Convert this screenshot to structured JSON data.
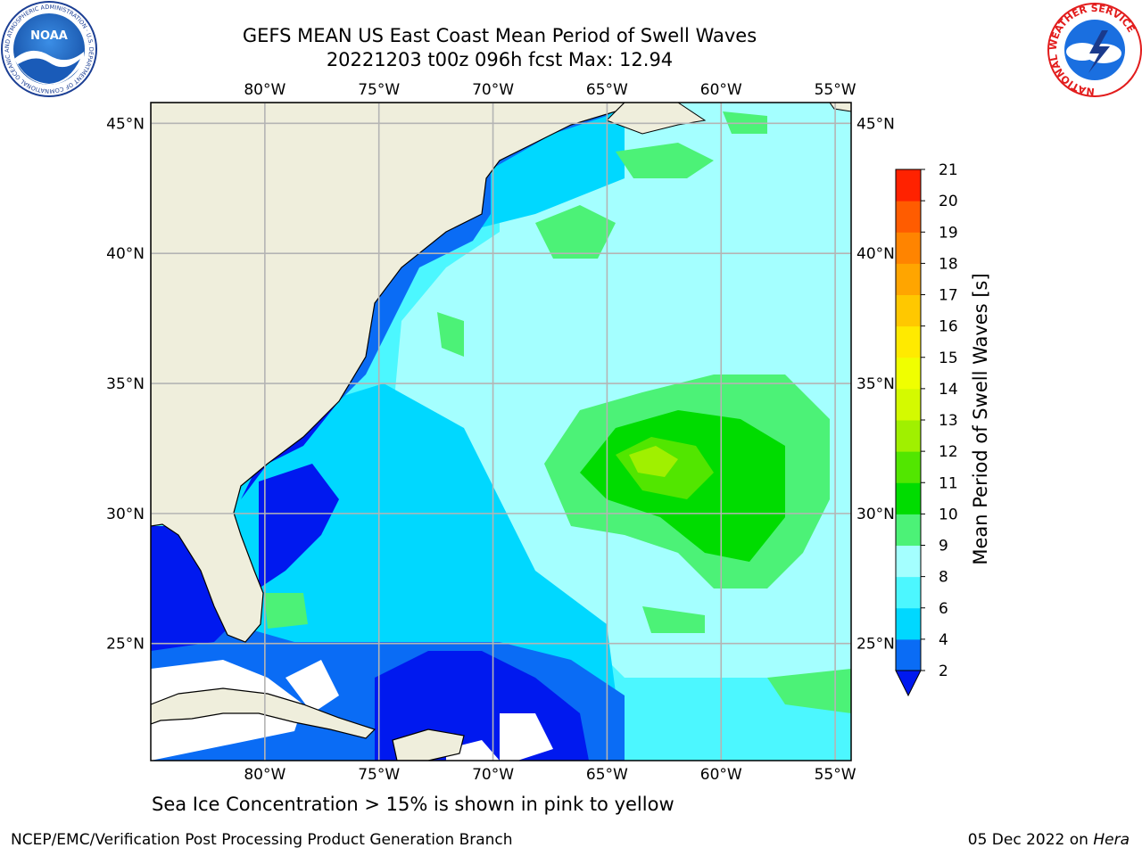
{
  "header": {
    "title_line1": "GEFS MEAN US East Coast Mean Period of Swell Waves",
    "title_line2": "20221203 t00z 096h fcst   Max: 12.94"
  },
  "logos": {
    "noaa_text": "NOAA",
    "noaa_ring_text": "NATIONAL OCEANIC AND ATMOSPHERIC ADMINISTRATION · U.S. DEPARTMENT OF COMMERCE",
    "nws_ring_text": "NATIONAL WEATHER SERVICE"
  },
  "map": {
    "lon_labels": [
      "80°W",
      "75°W",
      "70°W",
      "65°W",
      "60°W",
      "55°W"
    ],
    "lat_labels": [
      "45°N",
      "40°N",
      "35°N",
      "30°N",
      "25°N"
    ],
    "lon_values": [
      -80,
      -75,
      -70,
      -65,
      -60,
      -55
    ],
    "lat_values": [
      45,
      40,
      35,
      30,
      25
    ],
    "lon_range": [
      -85,
      -54.3
    ],
    "lat_range": [
      20.5,
      45.8
    ],
    "land_color": "#efeedc",
    "grid_color": "#b4b4b4"
  },
  "colorbar": {
    "label": "Mean Period of Swell Waves [s]",
    "ticks": [
      "2",
      "4",
      "6",
      "8",
      "9",
      "10",
      "11",
      "12",
      "13",
      "14",
      "15",
      "16",
      "17",
      "18",
      "19",
      "20",
      "21"
    ],
    "colors": [
      "#0a6cf5",
      "#00d8ff",
      "#4cf7ff",
      "#a4ffff",
      "#4cf277",
      "#00dc00",
      "#52e600",
      "#a0f000",
      "#d4fa00",
      "#f0ff00",
      "#ffea00",
      "#ffc800",
      "#ffa500",
      "#ff8400",
      "#ff5c00",
      "#ff2200"
    ],
    "under_color": "#0019ef"
  },
  "caption": "Sea Ice Concentration > 15% is shown in pink to yellow",
  "footer": {
    "left": "NCEP/EMC/Verification Post Processing Product Generation Branch",
    "right_date": "05 Dec 2022 on ",
    "right_machine": "Hera"
  }
}
